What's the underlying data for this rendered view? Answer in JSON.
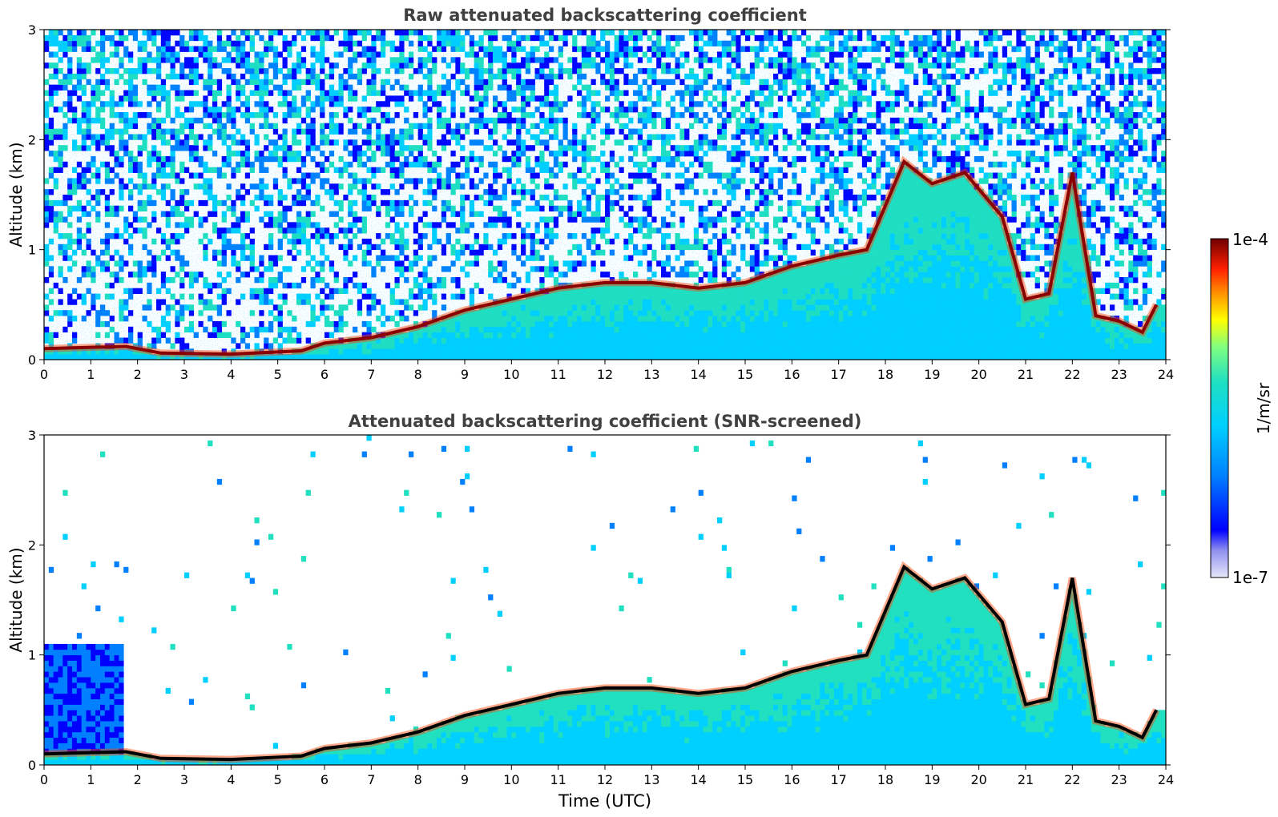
{
  "chart_data": [
    {
      "type": "heatmap",
      "title": "Raw attenuated backscattering coefficient",
      "xlabel": "",
      "ylabel": "Altitude (km)",
      "xlim": [
        0,
        24
      ],
      "ylim": [
        0,
        3
      ],
      "xticks": [
        "0",
        "1",
        "2",
        "3",
        "4",
        "5",
        "6",
        "7",
        "8",
        "9",
        "10",
        "11",
        "12",
        "13",
        "14",
        "15",
        "16",
        "17",
        "18",
        "19",
        "20",
        "21",
        "22",
        "23",
        "24"
      ],
      "yticks": [
        "0",
        "1",
        "2",
        "3"
      ],
      "screened": false,
      "cloud_layer": {
        "x": [
          0,
          1.75,
          2.5,
          4,
          5.5,
          6.0,
          7.0,
          8.0,
          9.0,
          10.0,
          11.0,
          12.0,
          13.0,
          14.0,
          15.0,
          16.0,
          17.0,
          17.6,
          18.4,
          19.0,
          19.7,
          20.5,
          21.0,
          21.5,
          22.0,
          22.5,
          23.0,
          23.5,
          23.8
        ],
        "y": [
          0.1,
          0.12,
          0.06,
          0.05,
          0.08,
          0.15,
          0.2,
          0.3,
          0.45,
          0.55,
          0.65,
          0.7,
          0.7,
          0.65,
          0.7,
          0.85,
          0.95,
          1.0,
          1.8,
          1.6,
          1.7,
          1.3,
          0.55,
          0.6,
          1.7,
          0.4,
          0.35,
          0.25,
          0.5
        ]
      }
    },
    {
      "type": "heatmap",
      "title": "Attenuated backscattering coefficient (SNR-screened)",
      "xlabel": "Time (UTC)",
      "ylabel": "Altitude (km)",
      "xlim": [
        0,
        24
      ],
      "ylim": [
        0,
        3
      ],
      "xticks": [
        "0",
        "1",
        "2",
        "3",
        "4",
        "5",
        "6",
        "7",
        "8",
        "9",
        "10",
        "11",
        "12",
        "13",
        "14",
        "15",
        "16",
        "17",
        "18",
        "19",
        "20",
        "21",
        "22",
        "23",
        "24"
      ],
      "yticks": [
        "0",
        "1",
        "2",
        "3"
      ],
      "screened": true,
      "cloud_layer": {
        "x": [
          0,
          1.75,
          2.5,
          4,
          5.5,
          6.0,
          7.0,
          8.0,
          9.0,
          10.0,
          11.0,
          12.0,
          13.0,
          14.0,
          15.0,
          16.0,
          17.0,
          17.6,
          18.4,
          19.0,
          19.7,
          20.5,
          21.0,
          21.5,
          22.0,
          22.5,
          23.0,
          23.5,
          23.8
        ],
        "y": [
          0.1,
          0.12,
          0.06,
          0.05,
          0.08,
          0.15,
          0.2,
          0.3,
          0.45,
          0.55,
          0.65,
          0.7,
          0.7,
          0.65,
          0.7,
          0.85,
          0.95,
          1.0,
          1.8,
          1.6,
          1.7,
          1.3,
          0.55,
          0.6,
          1.7,
          0.4,
          0.35,
          0.25,
          0.5
        ]
      }
    }
  ],
  "colorbar": {
    "min_label": "1e-7",
    "max_label": "1e-4",
    "label": "1/m/sr",
    "colormap": [
      "#e6e6fa",
      "#0000ff",
      "#0080ff",
      "#00d0ff",
      "#20e0c0",
      "#80ff80",
      "#ffff00",
      "#ff9000",
      "#ff2000",
      "#a00000",
      "#700000"
    ]
  }
}
